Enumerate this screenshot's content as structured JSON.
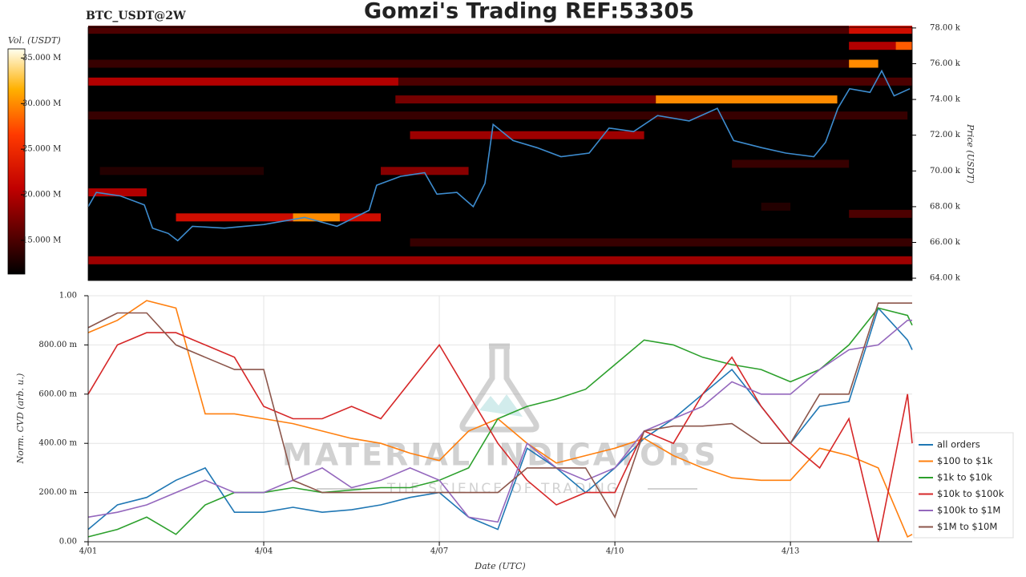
{
  "chart_data": [
    {
      "type": "heatmap",
      "title": "Gomzi's Trading REF:53305",
      "subtitle": "BTC_USDT@2W",
      "y_label": "Price (USDT)",
      "colorbar_label": "Vol. (USDT)",
      "colormap": "hot",
      "xlim": [
        0,
        14.08
      ],
      "ylim": [
        63870,
        78040
      ],
      "yticks": [
        {
          "value": 64000,
          "label": "64.00 k"
        },
        {
          "value": 66000,
          "label": "66.00 k"
        },
        {
          "value": 68000,
          "label": "68.00 k"
        },
        {
          "value": 70000,
          "label": "70.00 k"
        },
        {
          "value": 72000,
          "label": "72.00 k"
        },
        {
          "value": 74000,
          "label": "74.00 k"
        },
        {
          "value": 76000,
          "label": "76.00 k"
        },
        {
          "value": 78000,
          "label": "78.00 k"
        }
      ],
      "clim": [
        11300000,
        36000000
      ],
      "cticks": [
        {
          "value": 15000000,
          "label": "15.000 M"
        },
        {
          "value": 20000000,
          "label": "20.000 M"
        },
        {
          "value": 25000000,
          "label": "25.000 M"
        },
        {
          "value": 30000000,
          "label": "30.000 M"
        },
        {
          "value": 35000000,
          "label": "35.000 M"
        }
      ],
      "levels": [
        {
          "price": 77900,
          "start": 0,
          "end": 13,
          "volume": 15000000
        },
        {
          "price": 77900,
          "start": 13,
          "end": 14.08,
          "volume": 22000000
        },
        {
          "price": 77000,
          "start": 13,
          "end": 13.8,
          "volume": 20000000
        },
        {
          "price": 77000,
          "start": 13.8,
          "end": 14.08,
          "volume": 28000000
        },
        {
          "price": 76000,
          "start": 0,
          "end": 13,
          "volume": 14000000
        },
        {
          "price": 76000,
          "start": 13,
          "end": 13.5,
          "volume": 30000000
        },
        {
          "price": 75000,
          "start": 0,
          "end": 5.3,
          "volume": 20000000
        },
        {
          "price": 75000,
          "start": 5.3,
          "end": 14.08,
          "volume": 15000000
        },
        {
          "price": 74000,
          "start": 5.25,
          "end": 9.7,
          "volume": 17000000
        },
        {
          "price": 74000,
          "start": 9.7,
          "end": 12.8,
          "volume": 30000000
        },
        {
          "price": 73100,
          "start": 0,
          "end": 14,
          "volume": 14000000
        },
        {
          "price": 72000,
          "start": 5.5,
          "end": 9.5,
          "volume": 19000000
        },
        {
          "price": 70400,
          "start": 11,
          "end": 13,
          "volume": 14000000
        },
        {
          "price": 70000,
          "start": 0.2,
          "end": 3,
          "volume": 13000000
        },
        {
          "price": 70000,
          "start": 5,
          "end": 6.5,
          "volume": 18000000
        },
        {
          "price": 68800,
          "start": 0,
          "end": 1,
          "volume": 20000000
        },
        {
          "price": 68000,
          "start": 11.5,
          "end": 12,
          "volume": 13000000
        },
        {
          "price": 67600,
          "start": 13,
          "end": 14.08,
          "volume": 15000000
        },
        {
          "price": 67400,
          "start": 1.5,
          "end": 3.5,
          "volume": 22000000
        },
        {
          "price": 67400,
          "start": 3.5,
          "end": 4.3,
          "volume": 30000000
        },
        {
          "price": 67400,
          "start": 4.3,
          "end": 5,
          "volume": 22000000
        },
        {
          "price": 66000,
          "start": 5.5,
          "end": 14.08,
          "volume": 14000000
        },
        {
          "price": 65000,
          "start": 0,
          "end": 14.08,
          "volume": 19000000
        }
      ],
      "price_color": "#3d8ccf",
      "x": [
        0,
        0.14,
        0.55,
        0.96,
        1.1,
        1.37,
        1.53,
        1.78,
        2.33,
        3.0,
        3.7,
        4.25,
        4.8,
        4.93,
        5.34,
        5.75,
        5.96,
        6.3,
        6.58,
        6.78,
        6.92,
        7.26,
        7.67,
        8.08,
        8.56,
        8.9,
        9.32,
        9.73,
        10.27,
        10.75,
        11.03,
        11.51,
        11.92,
        12.4,
        12.6,
        12.81,
        13.01,
        13.36,
        13.56,
        13.77,
        14.04
      ],
      "values": [
        68000,
        68800,
        68600,
        68100,
        66800,
        66500,
        66100,
        66900,
        66800,
        67000,
        67400,
        66900,
        67800,
        69200,
        69700,
        69900,
        68700,
        68800,
        68000,
        69300,
        72600,
        71700,
        71300,
        70800,
        71000,
        72400,
        72200,
        73100,
        72800,
        73500,
        71700,
        71300,
        71000,
        70800,
        71600,
        73500,
        74600,
        74400,
        75600,
        74200,
        74600
      ]
    },
    {
      "type": "line",
      "x_label": "Date (UTC)",
      "y_label": "Norm. CVD (arb. u.)",
      "watermark": "MATERIAL INDICATORS",
      "watermark_tagline": "THE SCIENCE OF TRADING",
      "grid": true,
      "legend": "lower right",
      "xlim": [
        0,
        14.08
      ],
      "ylim": [
        0,
        1
      ],
      "xticks": [
        {
          "value": 0,
          "label": "4/01"
        },
        {
          "value": 3,
          "label": "4/04"
        },
        {
          "value": 6,
          "label": "4/07"
        },
        {
          "value": 9,
          "label": "4/10"
        },
        {
          "value": 12,
          "label": "4/13"
        }
      ],
      "yticks": [
        {
          "value": 0,
          "label": "0.00"
        },
        {
          "value": 0.2,
          "label": "200.00 m"
        },
        {
          "value": 0.4,
          "label": "400.00 m"
        },
        {
          "value": 0.6,
          "label": "600.00 m"
        },
        {
          "value": 0.8,
          "label": "800.00 m"
        },
        {
          "value": 1,
          "label": "1.00"
        }
      ],
      "x": [
        0,
        0.5,
        1,
        1.5,
        2,
        2.5,
        3,
        3.5,
        4,
        4.5,
        5,
        5.5,
        6,
        6.5,
        7,
        7.5,
        8,
        8.5,
        9,
        9.5,
        10,
        10.5,
        11,
        11.5,
        12,
        12.5,
        13,
        13.5,
        14,
        14.08
      ],
      "series": [
        {
          "name": "all orders",
          "color": "#1f77b4",
          "values": [
            0.05,
            0.15,
            0.18,
            0.25,
            0.3,
            0.12,
            0.12,
            0.14,
            0.12,
            0.13,
            0.15,
            0.18,
            0.2,
            0.1,
            0.05,
            0.38,
            0.3,
            0.2,
            0.3,
            0.42,
            0.5,
            0.6,
            0.7,
            0.55,
            0.4,
            0.55,
            0.57,
            0.95,
            0.82,
            0.78
          ]
        },
        {
          "name": "$100 to $1k",
          "color": "#ff7f0e",
          "values": [
            0.85,
            0.9,
            0.98,
            0.95,
            0.52,
            0.52,
            0.5,
            0.48,
            0.45,
            0.42,
            0.4,
            0.36,
            0.33,
            0.45,
            0.5,
            0.4,
            0.32,
            0.35,
            0.38,
            0.42,
            0.35,
            0.3,
            0.26,
            0.25,
            0.25,
            0.38,
            0.35,
            0.3,
            0.02,
            0.03
          ]
        },
        {
          "name": "$1k to $10k",
          "color": "#2ca02c",
          "values": [
            0.02,
            0.05,
            0.1,
            0.03,
            0.15,
            0.2,
            0.2,
            0.22,
            0.2,
            0.21,
            0.22,
            0.22,
            0.25,
            0.3,
            0.5,
            0.55,
            0.58,
            0.62,
            0.72,
            0.82,
            0.8,
            0.75,
            0.72,
            0.7,
            0.65,
            0.7,
            0.8,
            0.95,
            0.92,
            0.88
          ]
        },
        {
          "name": "$10k to $100k",
          "color": "#d62728",
          "values": [
            0.6,
            0.8,
            0.85,
            0.85,
            0.8,
            0.75,
            0.55,
            0.5,
            0.5,
            0.55,
            0.5,
            0.65,
            0.8,
            0.6,
            0.4,
            0.25,
            0.15,
            0.2,
            0.2,
            0.45,
            0.4,
            0.6,
            0.75,
            0.55,
            0.4,
            0.3,
            0.5,
            0.0,
            0.6,
            0.4
          ]
        },
        {
          "name": "$100k to $1M",
          "color": "#9467bd",
          "values": [
            0.1,
            0.12,
            0.15,
            0.2,
            0.25,
            0.2,
            0.2,
            0.25,
            0.3,
            0.22,
            0.25,
            0.3,
            0.25,
            0.1,
            0.08,
            0.4,
            0.3,
            0.25,
            0.3,
            0.45,
            0.5,
            0.55,
            0.65,
            0.6,
            0.6,
            0.7,
            0.78,
            0.8,
            0.9,
            0.9
          ]
        },
        {
          "name": "$1M to $10M",
          "color": "#8c564b",
          "values": [
            0.87,
            0.93,
            0.93,
            0.8,
            0.75,
            0.7,
            0.7,
            0.25,
            0.2,
            0.2,
            0.2,
            0.2,
            0.2,
            0.2,
            0.2,
            0.3,
            0.3,
            0.3,
            0.1,
            0.45,
            0.47,
            0.47,
            0.48,
            0.4,
            0.4,
            0.6,
            0.6,
            0.97,
            0.97,
            0.97
          ]
        }
      ]
    }
  ]
}
